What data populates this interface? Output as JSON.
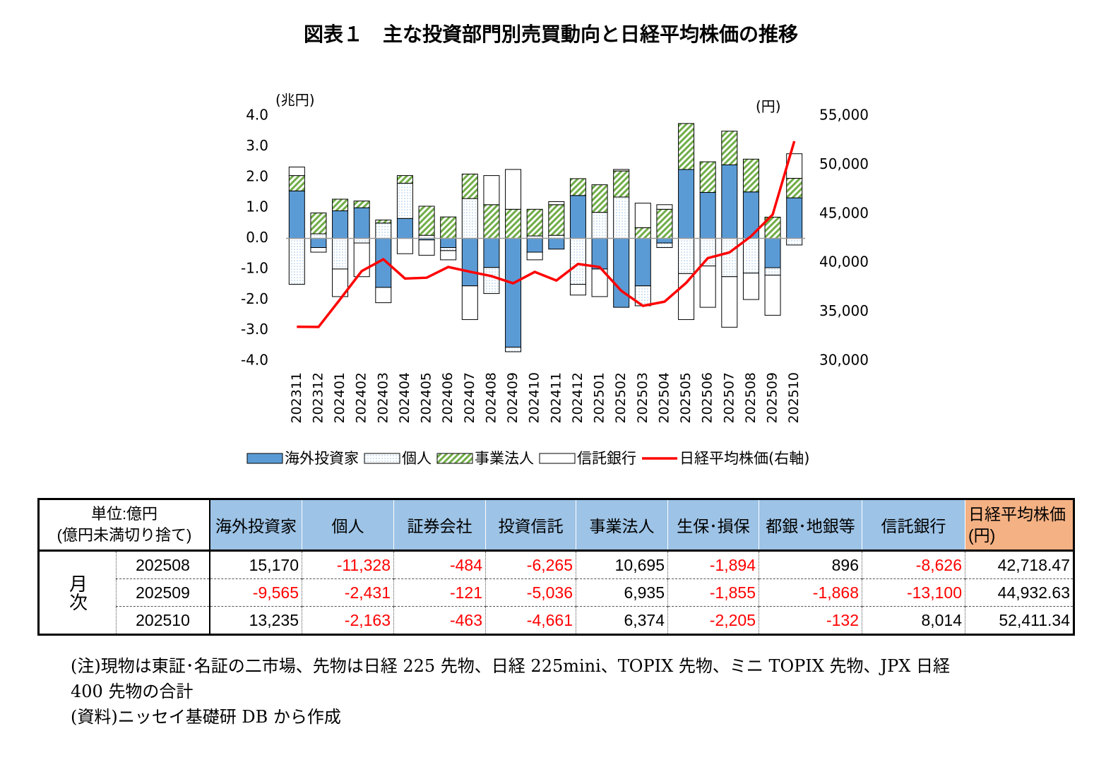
{
  "chart_data": {
    "type": "bar",
    "title": "図表１　主な投資部門別売買動向と日経平均株価の推移",
    "y_unit": "(兆円)",
    "y2_unit": "(円)",
    "categories": [
      "202311",
      "202312",
      "202401",
      "202402",
      "202403",
      "202404",
      "202405",
      "202406",
      "202407",
      "202408",
      "202409",
      "202410",
      "202411",
      "202412",
      "202501",
      "202502",
      "202503",
      "202504",
      "202505",
      "202506",
      "202507",
      "202508",
      "202509",
      "202510"
    ],
    "series": [
      {
        "name": "海外投資家",
        "color": "#5b9bd5",
        "pattern": "solid",
        "values": [
          1.55,
          -0.3,
          0.9,
          1.0,
          -1.6,
          0.65,
          -0.05,
          -0.3,
          -1.55,
          -0.95,
          -3.55,
          -0.45,
          -0.35,
          1.4,
          -1.0,
          -2.25,
          -1.55,
          -0.15,
          2.25,
          1.5,
          2.4,
          1.517,
          -0.9565,
          1.3235
        ]
      },
      {
        "name": "個人",
        "color": "#9dc3e6",
        "pattern": "dots",
        "values": [
          -1.5,
          0.15,
          -1.0,
          -0.15,
          0.5,
          1.15,
          0.1,
          -0.1,
          1.3,
          -0.85,
          -0.15,
          0.08,
          0.1,
          -1.5,
          0.85,
          1.35,
          -0.65,
          -0.15,
          -1.15,
          -0.9,
          -1.25,
          -1.1328,
          -0.2431,
          -0.2163
        ]
      },
      {
        "name": "事業法人",
        "color": "#70ad47",
        "pattern": "stripes",
        "values": [
          0.5,
          0.68,
          0.38,
          0.22,
          0.1,
          0.25,
          0.95,
          0.7,
          0.8,
          1.1,
          0.95,
          0.87,
          1.0,
          0.55,
          0.9,
          0.85,
          0.35,
          0.95,
          1.5,
          1.0,
          1.1,
          1.0695,
          0.6935,
          0.6374
        ]
      },
      {
        "name": "信託銀行",
        "color": "#ffffff",
        "pattern": "solid",
        "values": [
          0.28,
          -0.15,
          -0.9,
          -1.1,
          -0.5,
          -0.5,
          -0.5,
          -0.3,
          -1.1,
          0.95,
          1.3,
          -0.25,
          0.1,
          -0.35,
          -0.9,
          0.05,
          0.8,
          0.15,
          -1.5,
          -1.35,
          -1.65,
          -0.8626,
          -1.31,
          0.8014
        ]
      },
      {
        "name": "日経平均株価(右軸)",
        "color": "#ff0000",
        "axis": "y2",
        "values": [
          33486,
          33464,
          36287,
          39166,
          40369,
          38405,
          38488,
          39583,
          39102,
          38648,
          37920,
          39081,
          38208,
          39895,
          39572,
          37156,
          35618,
          36045,
          37965,
          40487,
          41070,
          42718.47,
          44932.63,
          52411.34
        ]
      }
    ],
    "ylim": [
      -4,
      4
    ],
    "yticks": [
      {
        "value": -4,
        "label": "-4.0"
      },
      {
        "value": -3,
        "label": "-3.0"
      },
      {
        "value": -2,
        "label": "-2.0"
      },
      {
        "value": -1,
        "label": "-1.0"
      },
      {
        "value": 0,
        "label": "0.0"
      },
      {
        "value": 1,
        "label": "1.0"
      },
      {
        "value": 2,
        "label": "2.0"
      },
      {
        "value": 3,
        "label": "3.0"
      },
      {
        "value": 4,
        "label": "4.0"
      }
    ],
    "y2lim": [
      30000,
      55000
    ],
    "y2ticks": [
      {
        "value": 30000,
        "label": "30,000"
      },
      {
        "value": 35000,
        "label": "35,000"
      },
      {
        "value": 40000,
        "label": "40,000"
      },
      {
        "value": 45000,
        "label": "45,000"
      },
      {
        "value": 50000,
        "label": "50,000"
      },
      {
        "value": 55000,
        "label": "55,000"
      }
    ],
    "legend": "bottom",
    "grid": false
  },
  "table": {
    "unit": [
      "単位:億円",
      "(億円未満切り捨て)"
    ],
    "headers": [
      "海外投資家",
      "個人",
      "証券会社",
      "投資信託",
      "事業法人",
      "生保･損保",
      "都銀･地銀等",
      "信託銀行"
    ],
    "last_header": [
      "日経平均株価",
      "(円)"
    ],
    "row_group": "月次",
    "rows": [
      {
        "month": "202508",
        "cells": [
          "15,170",
          "-11,328",
          "-484",
          "-6,265",
          "10,695",
          "-1,894",
          "896",
          "-8,626",
          "42,718.47"
        ]
      },
      {
        "month": "202509",
        "cells": [
          "-9,565",
          "-2,431",
          "-121",
          "-5,036",
          "6,935",
          "-1,855",
          "-1,868",
          "-13,100",
          "44,932.63"
        ]
      },
      {
        "month": "202510",
        "cells": [
          "13,235",
          "-2,163",
          "-463",
          "-4,661",
          "6,374",
          "-2,205",
          "-132",
          "8,014",
          "52,411.34"
        ]
      }
    ]
  },
  "notes": [
    "(注)現物は東証･名証の二市場、先物は日経 225 先物、日経 225mini、TOPIX 先物、ミニ TOPIX 先物、JPX 日経 400 先物の合計",
    "(資料)ニッセイ基礎研 DB から作成"
  ]
}
